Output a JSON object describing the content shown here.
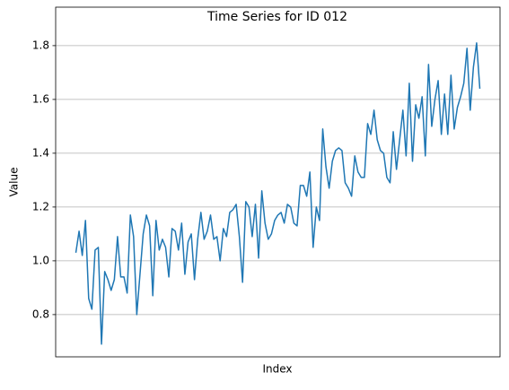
{
  "chart_data": {
    "type": "line",
    "title": "Time Series for ID 012",
    "xlabel": "Index",
    "ylabel": "Value",
    "series": [
      {
        "name": "ID 012",
        "color": "#1f77b4",
        "values": [
          1.03,
          1.11,
          1.02,
          1.15,
          0.86,
          0.82,
          1.04,
          1.05,
          0.69,
          0.96,
          0.93,
          0.89,
          0.93,
          1.09,
          0.94,
          0.94,
          0.88,
          1.17,
          1.09,
          0.8,
          0.95,
          1.1,
          1.17,
          1.13,
          0.87,
          1.15,
          1.04,
          1.08,
          1.05,
          0.94,
          1.12,
          1.11,
          1.04,
          1.14,
          0.95,
          1.07,
          1.1,
          0.93,
          1.08,
          1.18,
          1.08,
          1.11,
          1.17,
          1.08,
          1.09,
          1.0,
          1.12,
          1.09,
          1.18,
          1.19,
          1.21,
          1.09,
          0.92,
          1.22,
          1.2,
          1.09,
          1.21,
          1.01,
          1.26,
          1.14,
          1.08,
          1.1,
          1.15,
          1.17,
          1.18,
          1.14,
          1.21,
          1.2,
          1.14,
          1.13,
          1.28,
          1.28,
          1.24,
          1.33,
          1.05,
          1.2,
          1.15,
          1.49,
          1.35,
          1.27,
          1.37,
          1.41,
          1.42,
          1.41,
          1.29,
          1.27,
          1.24,
          1.39,
          1.33,
          1.31,
          1.31,
          1.51,
          1.47,
          1.56,
          1.45,
          1.41,
          1.4,
          1.31,
          1.29,
          1.48,
          1.34,
          1.45,
          1.56,
          1.39,
          1.66,
          1.37,
          1.58,
          1.53,
          1.61,
          1.39,
          1.73,
          1.5,
          1.6,
          1.67,
          1.47,
          1.62,
          1.47,
          1.69,
          1.49,
          1.57,
          1.61,
          1.66,
          1.79,
          1.56,
          1.72,
          1.81,
          1.64
        ]
      }
    ],
    "ylim": [
      0.643,
      1.943
    ],
    "yticks": [
      {
        "value": 0.8,
        "label": "0.8"
      },
      {
        "value": 1.0,
        "label": "1.0"
      },
      {
        "value": 1.2,
        "label": "1.2"
      },
      {
        "value": 1.4,
        "label": "1.4"
      },
      {
        "value": 1.6,
        "label": "1.6"
      },
      {
        "value": 1.8,
        "label": "1.8"
      }
    ],
    "grid": true
  }
}
